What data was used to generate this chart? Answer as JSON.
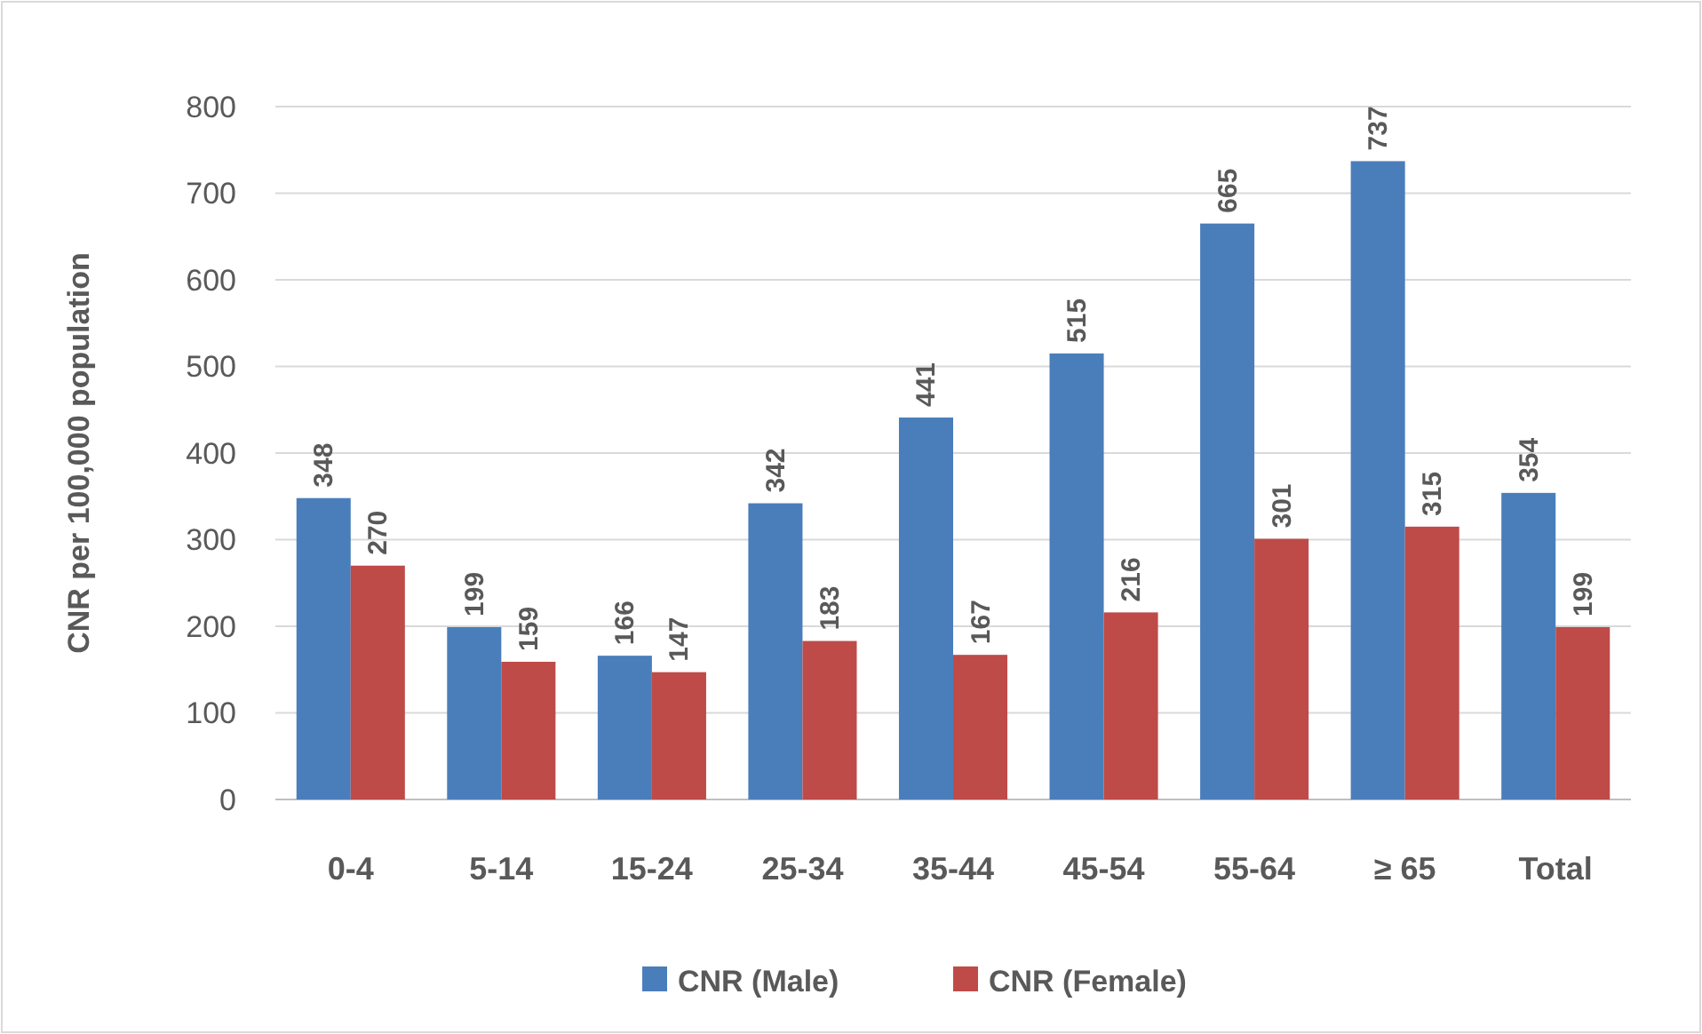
{
  "chart_data": {
    "type": "bar",
    "ylabel": "CNR per 100,000 population",
    "categories": [
      "0-4",
      "5-14",
      "15-24",
      "25-34",
      "35-44",
      "45-54",
      "55-64",
      "≥ 65",
      "Total"
    ],
    "series": [
      {
        "name": "CNR (Male)",
        "color": "#4a7ebb",
        "values": [
          348,
          199,
          166,
          342,
          441,
          515,
          665,
          737,
          354
        ]
      },
      {
        "name": "CNR (Female)",
        "color": "#be4b48",
        "values": [
          270,
          159,
          147,
          183,
          167,
          216,
          301,
          315,
          199
        ]
      }
    ],
    "ylim": [
      0,
      800
    ],
    "yticks": [
      0,
      100,
      200,
      300,
      400,
      500,
      600,
      700,
      800
    ],
    "grid": "y",
    "legend": "bottom",
    "data_labels": true
  }
}
